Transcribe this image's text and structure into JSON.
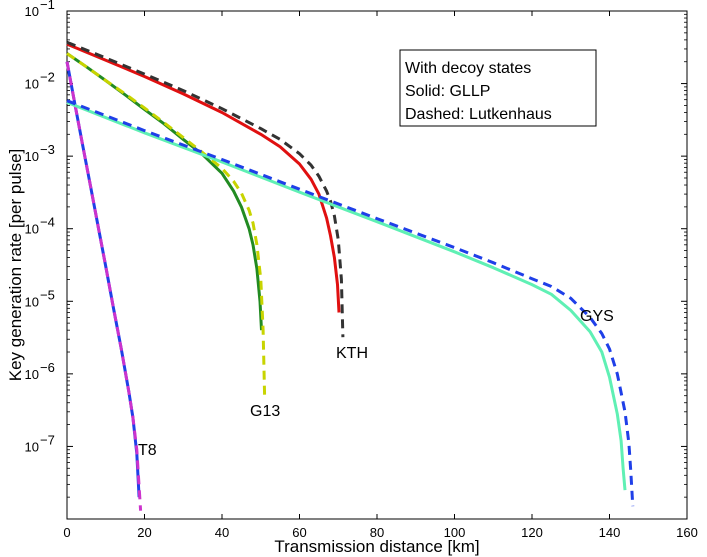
{
  "chart_data": {
    "type": "line",
    "xlabel": "Transmission distance [km]",
    "ylabel": "Key generation rate [per pulse]",
    "xlim": [
      0,
      160
    ],
    "ylim": [
      1e-08,
      0.1
    ],
    "yscale": "log",
    "x_ticks": [
      "0",
      "20",
      "40",
      "60",
      "80",
      "100",
      "120",
      "140",
      "160"
    ],
    "y_ticks": [
      {
        "base": "10",
        "exp": "−7"
      },
      {
        "base": "10",
        "exp": "−6"
      },
      {
        "base": "10",
        "exp": "−5"
      },
      {
        "base": "10",
        "exp": "−4"
      },
      {
        "base": "10",
        "exp": "−3"
      },
      {
        "base": "10",
        "exp": "−2"
      },
      {
        "base": "10",
        "exp": "−1"
      }
    ],
    "legend_box": {
      "lines": [
        "With decoy states",
        "Solid: GLLP",
        "Dashed: Lutkenhaus"
      ],
      "position": "top-right"
    },
    "annotations": [
      "T8",
      "G13",
      "KTH",
      "GYS"
    ],
    "series": [
      {
        "label": "T8",
        "method": "GLLP",
        "style": "solid",
        "color": "#1f3fe8",
        "x": [
          0,
          2,
          4,
          6,
          8,
          10,
          12,
          14,
          16,
          17,
          18,
          18.6
        ],
        "y": [
          0.02,
          0.0053,
          0.00145,
          0.0004,
          0.00011,
          3e-05,
          8e-06,
          2.2e-06,
          5.5e-07,
          2.5e-07,
          8e-08,
          2e-08
        ]
      },
      {
        "label": "T8",
        "method": "Lutkenhaus",
        "style": "dashed",
        "color": "#cc33cc",
        "x": [
          0,
          2,
          4,
          6,
          8,
          10,
          12,
          14,
          16,
          17,
          18,
          19
        ],
        "y": [
          0.02,
          0.0053,
          0.00145,
          0.0004,
          0.00011,
          3e-05,
          8e-06,
          2.2e-06,
          5.5e-07,
          2.5e-07,
          9e-08,
          1.3e-08
        ]
      },
      {
        "label": "G13",
        "method": "GLLP",
        "style": "solid",
        "color": "#228b22",
        "x": [
          0,
          5,
          10,
          15,
          20,
          25,
          30,
          35,
          40,
          43,
          45,
          47,
          48,
          49,
          49.8,
          50.2
        ],
        "y": [
          0.026,
          0.017,
          0.011,
          0.007,
          0.0044,
          0.0028,
          0.0017,
          0.00105,
          0.00058,
          0.00033,
          0.0002,
          0.0001,
          6e-05,
          2.8e-05,
          1e-05,
          4e-06
        ]
      },
      {
        "label": "G13",
        "method": "Lutkenhaus",
        "style": "dashed",
        "color": "#c8d400",
        "x": [
          0,
          5,
          10,
          15,
          20,
          25,
          30,
          35,
          40,
          43,
          45,
          47,
          48,
          49,
          50,
          50.6,
          51
        ],
        "y": [
          0.026,
          0.017,
          0.011,
          0.0072,
          0.0046,
          0.0029,
          0.0018,
          0.00112,
          0.00068,
          0.00045,
          0.00031,
          0.00018,
          0.00012,
          6e-05,
          2e-05,
          4e-06,
          5e-07
        ]
      },
      {
        "label": "KTH",
        "method": "GLLP",
        "style": "solid",
        "color": "#e01010",
        "x": [
          0,
          10,
          20,
          30,
          40,
          50,
          55,
          60,
          63,
          65,
          67,
          68,
          69,
          69.8,
          70.2
        ],
        "y": [
          0.035,
          0.021,
          0.0125,
          0.0072,
          0.004,
          0.002,
          0.00135,
          0.00078,
          0.00048,
          0.0003,
          0.00014,
          8e-05,
          4e-05,
          1.7e-05,
          7e-06
        ]
      },
      {
        "label": "KTH",
        "method": "Lutkenhaus",
        "style": "dashed",
        "color": "#333333",
        "x": [
          0,
          10,
          20,
          30,
          40,
          50,
          55,
          60,
          63,
          65,
          67,
          68,
          69,
          70,
          70.8,
          71.2
        ],
        "y": [
          0.037,
          0.0225,
          0.0135,
          0.008,
          0.0045,
          0.0024,
          0.0017,
          0.00108,
          0.00075,
          0.00053,
          0.00033,
          0.00024,
          0.00015,
          7e-05,
          2e-05,
          3.2e-06
        ]
      },
      {
        "label": "GYS",
        "method": "GLLP",
        "style": "solid",
        "color": "#5ff0b4",
        "x": [
          0,
          20,
          40,
          60,
          80,
          100,
          110,
          120,
          125,
          130,
          135,
          138,
          140,
          142,
          143,
          143.5,
          144
        ],
        "y": [
          0.0055,
          0.0021,
          0.00083,
          0.00032,
          0.000125,
          4.8e-05,
          2.9e-05,
          1.7e-05,
          1.25e-05,
          7.5e-06,
          3.8e-06,
          2e-06,
          9e-07,
          2.8e-07,
          1.2e-07,
          5e-08,
          2.5e-08
        ]
      },
      {
        "label": "GYS",
        "method": "Lutkenhaus",
        "style": "dashed",
        "color": "#1f3fe8",
        "x": [
          0,
          20,
          40,
          60,
          80,
          100,
          110,
          120,
          125,
          130,
          135,
          138,
          140,
          142,
          144,
          145,
          145.5,
          146
        ],
        "y": [
          0.0058,
          0.00225,
          0.0009,
          0.00035,
          0.000138,
          5.5e-05,
          3.4e-05,
          2.05e-05,
          1.6e-05,
          1.1e-05,
          6e-06,
          3.6e-06,
          2.2e-06,
          1e-06,
          3e-07,
          1.1e-07,
          4.5e-08,
          1.5e-08
        ]
      }
    ]
  }
}
